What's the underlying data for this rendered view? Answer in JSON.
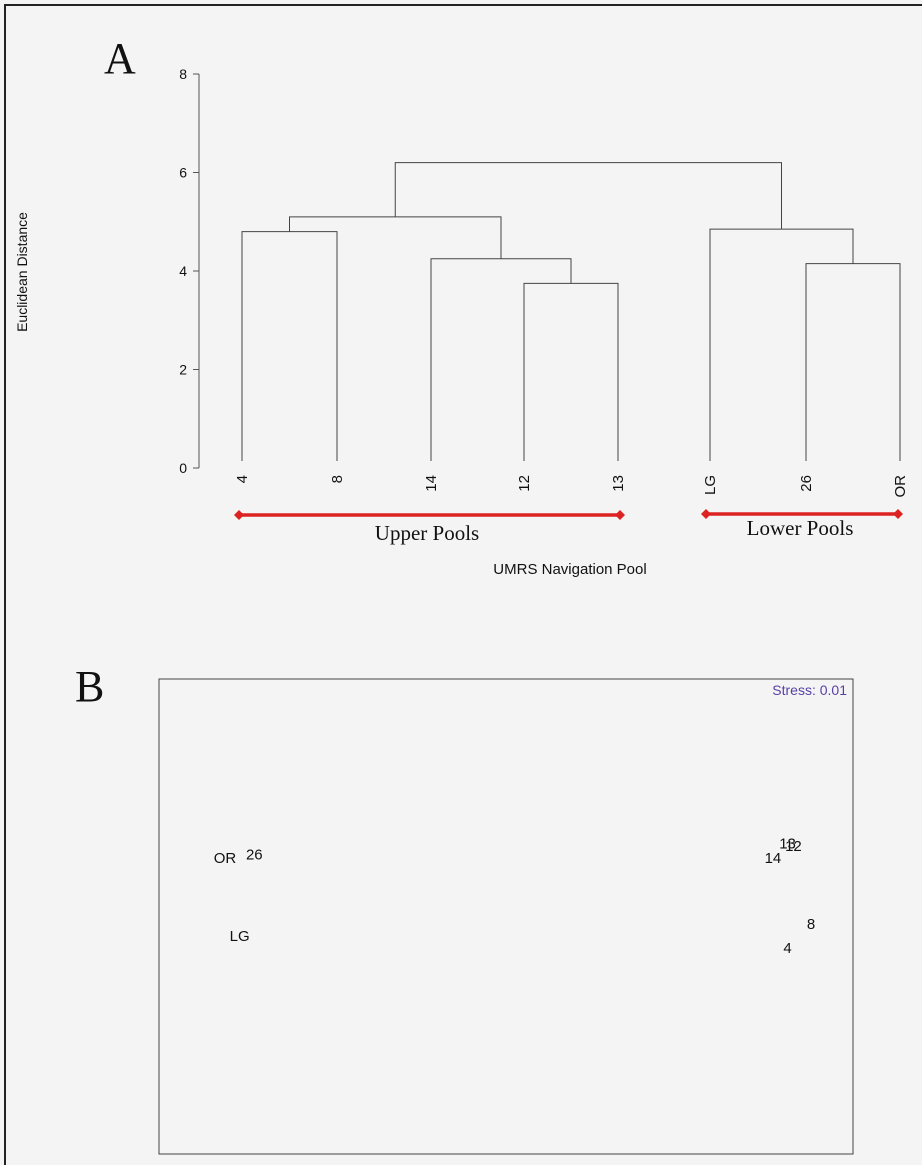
{
  "panel_a": {
    "letter": "A",
    "ylabel": "Euclidean Distance",
    "xlabel": "UMRS Navigation Pool",
    "group_upper": "Upper Pools",
    "group_lower": "Lower Pools",
    "accent_color": "#dd2222"
  },
  "panel_b": {
    "letter": "B",
    "stress_label": "Stress: 0.01",
    "stress_color": "#5a3fa6"
  },
  "chart_data": [
    {
      "type": "dendrogram",
      "ylabel": "Euclidean Distance",
      "xlabel": "UMRS Navigation Pool",
      "ylim": [
        0,
        8
      ],
      "yticks": [
        0,
        2,
        4,
        6,
        8
      ],
      "leaves": [
        "4",
        "8",
        "14",
        "12",
        "13",
        "LG",
        "26",
        "OR"
      ],
      "merges": [
        {
          "left": "12",
          "right": "13",
          "height": 3.75
        },
        {
          "left": "14",
          "right": "12+13",
          "height": 4.25
        },
        {
          "left": "26",
          "right": "OR",
          "height": 4.15
        },
        {
          "left": "4",
          "right": "8",
          "height": 4.8
        },
        {
          "left": "LG",
          "right": "26+OR",
          "height": 4.85
        },
        {
          "left": "4+8",
          "right": "14+12+13",
          "height": 5.1
        },
        {
          "left": "4+8+14+12+13",
          "right": "LG+26+OR",
          "height": 6.2
        }
      ],
      "groups": [
        {
          "name": "Upper Pools",
          "members": [
            "4",
            "8",
            "14",
            "12",
            "13"
          ]
        },
        {
          "name": "Lower Pools",
          "members": [
            "LG",
            "26",
            "OR"
          ]
        }
      ]
    },
    {
      "type": "scatter",
      "annotation": "Stress: 0.01",
      "points": [
        {
          "label": "OR",
          "x": -1.0,
          "y": 0.1
        },
        {
          "label": "26",
          "x": -0.9,
          "y": 0.13
        },
        {
          "label": "LG",
          "x": -0.95,
          "y": -0.55
        },
        {
          "label": "14",
          "x": 0.87,
          "y": 0.1
        },
        {
          "label": "13",
          "x": 0.92,
          "y": 0.22
        },
        {
          "label": "12",
          "x": 0.94,
          "y": 0.2
        },
        {
          "label": "8",
          "x": 1.0,
          "y": -0.45
        },
        {
          "label": "4",
          "x": 0.92,
          "y": -0.65
        }
      ]
    }
  ]
}
